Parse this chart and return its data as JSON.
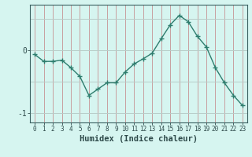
{
  "x": [
    0,
    1,
    2,
    3,
    4,
    5,
    6,
    7,
    8,
    9,
    10,
    11,
    12,
    13,
    14,
    15,
    16,
    17,
    18,
    19,
    20,
    21,
    22,
    23
  ],
  "y": [
    -0.07,
    -0.18,
    -0.18,
    -0.16,
    -0.28,
    -0.42,
    -0.72,
    -0.62,
    -0.52,
    -0.52,
    -0.35,
    -0.22,
    -0.14,
    -0.05,
    0.18,
    0.4,
    0.55,
    0.45,
    0.22,
    0.05,
    -0.28,
    -0.52,
    -0.72,
    -0.88
  ],
  "xlabel": "Humidex (Indice chaleur)",
  "line_color": "#2e7d6e",
  "marker_color": "#2e7d6e",
  "bg_color": "#d6f5f0",
  "grid_color_v": "#c8a0a0",
  "grid_color_h": "#b8ccc8",
  "yticks": [
    0,
    -1
  ],
  "ytick_labels": [
    "0",
    "-1"
  ],
  "ylim": [
    -1.15,
    0.72
  ],
  "xlim": [
    -0.5,
    23.5
  ],
  "xtick_labels": [
    "0",
    "1",
    "2",
    "3",
    "4",
    "5",
    "6",
    "7",
    "8",
    "9",
    "10",
    "11",
    "12",
    "13",
    "14",
    "15",
    "16",
    "17",
    "18",
    "19",
    "20",
    "21",
    "22",
    "23"
  ]
}
